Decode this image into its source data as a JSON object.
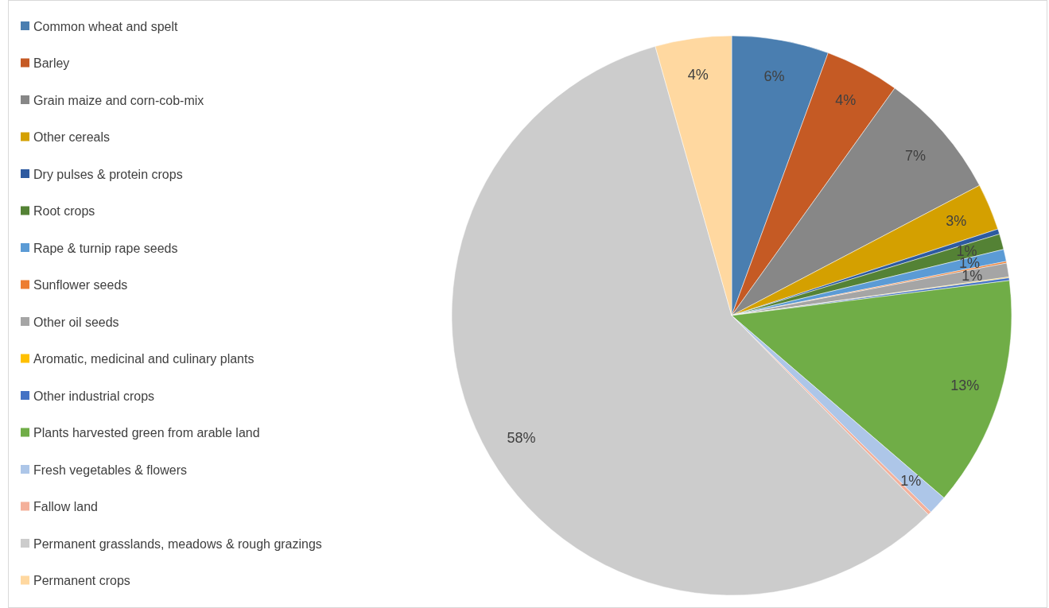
{
  "chart_data": {
    "type": "pie",
    "legend": "left",
    "categories": [
      "Common wheat and spelt",
      "Barley",
      "Grain maize and corn-cob-mix",
      "Other cereals",
      "Dry pulses & protein crops",
      "Root crops",
      "Rape & turnip rape seeds",
      "Sunflower seeds",
      "Other oil seeds",
      "Aromatic, medicinal and culinary plants",
      "Other industrial crops",
      "Plants harvested green from arable land",
      "Fresh vegetables & flowers",
      "Fallow land",
      "Permanent grasslands, meadows & rough grazings",
      "Permanent crops"
    ],
    "values": [
      5.6,
      4.3,
      7.4,
      2.7,
      0.3,
      0.9,
      0.7,
      0.1,
      0.8,
      0.05,
      0.15,
      13.3,
      1.1,
      0.2,
      58.0,
      4.4
    ],
    "value_labels": [
      "6%",
      "4%",
      "7%",
      "3%",
      null,
      "1%",
      "1%",
      null,
      "1%",
      null,
      null,
      "13%",
      "1%",
      null,
      "58%",
      "4%"
    ],
    "colors": [
      "#4a7eb0",
      "#c55a24",
      "#878787",
      "#d4a000",
      "#2d5aa0",
      "#548235",
      "#5b9bd5",
      "#ed7d31",
      "#a5a5a5",
      "#ffc000",
      "#4472c4",
      "#70ad47",
      "#adc6e8",
      "#f4b09a",
      "#cccccc",
      "#ffd8a0"
    ]
  }
}
